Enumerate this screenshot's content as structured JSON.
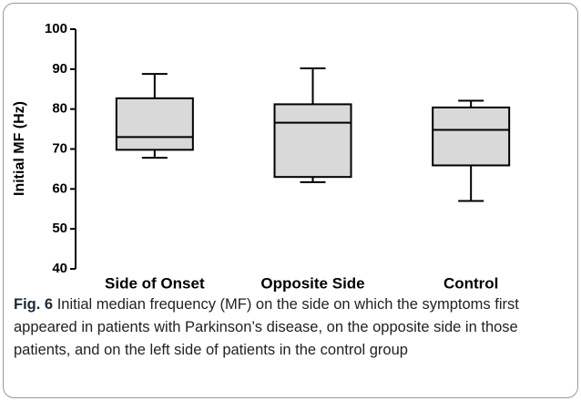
{
  "chart_data": {
    "type": "box",
    "ylabel": "Initial MF (Hz)",
    "categories": [
      "Side of Onset",
      "Opposite Side",
      "Control"
    ],
    "boxes": [
      {
        "min": 67.8,
        "q1": 69.8,
        "median": 73,
        "q3": 82.7,
        "max": 88.8
      },
      {
        "min": 61.7,
        "q1": 63,
        "median": 76.6,
        "q3": 81.2,
        "max": 90.2
      },
      {
        "min": 57,
        "q1": 65.9,
        "median": 74.8,
        "q3": 80.4,
        "max": 82.1
      }
    ],
    "color": "#d9d9d9",
    "ylim": [
      40,
      100
    ],
    "yticks": [
      40,
      50,
      60,
      70,
      80,
      90,
      100
    ]
  },
  "caption": {
    "label": "Fig. 6",
    "text": "Initial median frequency (MF) on the side on which the symptoms first appeared in patients with Parkinson’s disease, on the opposite side in those patients, and on the left side of patients in the control group"
  }
}
